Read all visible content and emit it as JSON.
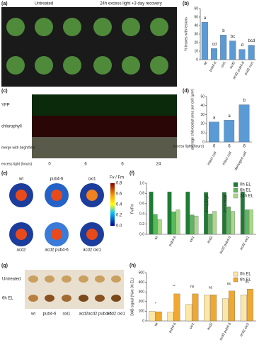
{
  "panels": {
    "a": {
      "label": "(a)",
      "header_left": "Untreated",
      "header_right": "24h excess light +3 day recovery",
      "top": [
        "wt",
        "pub4-6",
        "oxi1",
        "wt",
        "pub4-6",
        "oxi1"
      ],
      "bottom": [
        "acd2",
        "acd2 pub4-6",
        "acd2 oxi1",
        "acd2",
        "acd2 pub4-6",
        "acd2 oxi1"
      ]
    },
    "c": {
      "label": "(c)",
      "rows": [
        "YFP",
        "chlorophyll",
        "merge with brightfield"
      ],
      "xlabel": "excess light (hours)",
      "hours": [
        "0",
        "6",
        "6",
        "24"
      ]
    },
    "e": {
      "label": "(e)",
      "names": [
        "wt",
        "pub4-6",
        "oxi1",
        "acd2",
        "acd2 pub4-6",
        "acd2 oxi1"
      ],
      "colorbar_title": "Fv / Fm",
      "colorbar_ticks": [
        "0.8",
        "0.6",
        "0.4",
        "0.2",
        "0.0"
      ]
    },
    "g": {
      "label": "(g)",
      "rows": [
        "Untreated",
        "6h EL"
      ],
      "columns": [
        "wt",
        "pub4-6",
        "oxi1",
        "acd2",
        "acd2 pub4-6",
        "acd2 oxi1"
      ]
    }
  },
  "chart_data": [
    {
      "type": "bar",
      "label": "(b)",
      "ylabel": "% leaves with lesions",
      "categories": [
        "wt",
        "pub4-6",
        "oxi1",
        "acd2",
        "acd2 pub4-6",
        "acd2 oxi1"
      ],
      "values": [
        44,
        13,
        29,
        22,
        12,
        17
      ],
      "color": "#5b9bd5",
      "letters": [
        "a",
        "cd",
        "b",
        "bc",
        "d",
        "bcd"
      ],
      "ylim": [
        0,
        60
      ],
      "yticks": [
        0,
        10,
        20,
        30,
        40,
        50,
        60
      ]
    },
    {
      "type": "bar",
      "label": "(d)",
      "ylabel": "average chloroplast area per cell (µm²)",
      "categories": [
        "intact cell",
        "intact cell",
        "damaged cell"
      ],
      "hours": [
        "0",
        "6",
        "6"
      ],
      "xlabel": "excess light (hours)",
      "values": [
        22,
        24,
        41
      ],
      "color": "#5b9bd5",
      "letters": [
        "a",
        "a",
        "b"
      ],
      "ylim": [
        0,
        50
      ],
      "yticks": [
        0,
        10,
        20,
        30,
        40,
        50
      ]
    },
    {
      "type": "bar",
      "label": "(f)",
      "ylabel": "Fv/Fm",
      "categories": [
        "wt",
        "pub4-6",
        "oxi1",
        "acd2",
        "acd2 pub4-6",
        "acd2 oxi1"
      ],
      "series": [
        {
          "name": "0h EL",
          "color": "#1e7b34",
          "values": [
            0.83,
            0.83,
            0.83,
            0.82,
            0.82,
            0.83
          ]
        },
        {
          "name": "6h EL",
          "color": "#5cb85c",
          "values": [
            0.39,
            0.44,
            0.38,
            0.4,
            0.54,
            0.48
          ]
        },
        {
          "name": "24h EL",
          "color": "#a8d98a",
          "values": [
            0.29,
            0.48,
            0.36,
            0.45,
            0.45,
            0.48
          ]
        }
      ],
      "annotations": [
        "P = 0.0717",
        "P = 0.0508"
      ],
      "ylim": [
        0,
        1
      ],
      "yticks": [
        {
          "value": 0,
          "label": "0.0"
        },
        0.2,
        0.4,
        0.6,
        0.8,
        {
          "value": 1,
          "label": "1.0"
        }
      ]
    },
    {
      "type": "bar",
      "label": "(h)",
      "ylabel": "DAB signal (%wt 0h EL)",
      "categories": [
        "wt",
        "pub4-6",
        "oxi1",
        "acd2",
        "acd2 pub4-6",
        "acd2 oxi1"
      ],
      "series": [
        {
          "name": "0h EL",
          "color": "#fde7a6",
          "values": [
            100,
            90,
            170,
            270,
            230,
            270
          ]
        },
        {
          "name": "6h EL",
          "color": "#f0a830",
          "values": [
            95,
            280,
            280,
            270,
            310,
            330
          ]
        }
      ],
      "sig": [
        "*",
        "**",
        "ns",
        "ns",
        "ns",
        "ns"
      ],
      "ylim": [
        0,
        500
      ],
      "yticks": [
        0,
        100,
        200,
        300,
        400,
        500
      ]
    }
  ]
}
